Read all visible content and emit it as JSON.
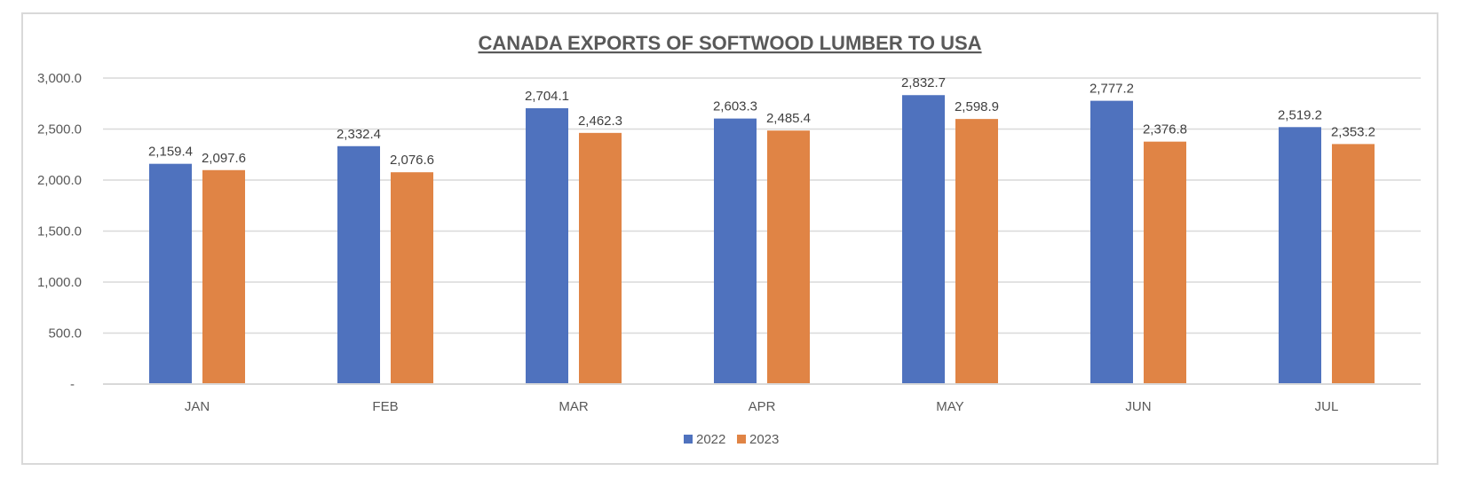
{
  "chart_data": {
    "type": "bar",
    "title": "CANADA EXPORTS OF SOFTWOOD LUMBER TO USA",
    "xlabel": "",
    "ylabel": "",
    "categories": [
      "JAN",
      "FEB",
      "MAR",
      "APR",
      "MAY",
      "JUN",
      "JUL"
    ],
    "series": [
      {
        "name": "2022",
        "color": "#4f72be",
        "values": [
          2159.4,
          2332.4,
          2704.1,
          2603.3,
          2832.7,
          2777.2,
          2519.2
        ],
        "labels": [
          "2,159.4",
          "2,332.4",
          "2,704.1",
          "2,603.3",
          "2,832.7",
          "2,777.2",
          "2,519.2"
        ]
      },
      {
        "name": "2023",
        "color": "#e08445",
        "values": [
          2097.6,
          2076.6,
          2462.3,
          2485.4,
          2598.9,
          2376.8,
          2353.2
        ],
        "labels": [
          "2,097.6",
          "2,076.6",
          "2,462.3",
          "2,485.4",
          "2,598.9",
          "2,376.8",
          "2,353.2"
        ]
      }
    ],
    "ylim": [
      0,
      3000
    ],
    "yticks": [
      0,
      500,
      1000,
      1500,
      2000,
      2500,
      3000
    ],
    "ytick_labels": [
      "-",
      "500.0",
      "1,000.0",
      "1,500.0",
      "2,000.0",
      "2,500.0",
      "3,000.0"
    ],
    "grid": true,
    "legend": "bottom-center"
  }
}
